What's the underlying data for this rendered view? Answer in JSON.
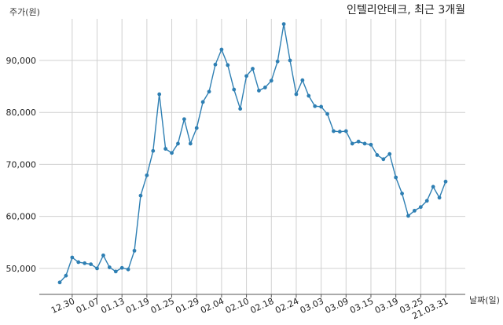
{
  "chart_data": {
    "type": "line",
    "title": "인텔리안테크, 최근 3개월",
    "ylabel": "주가(원)",
    "xlabel": "날짜(일)",
    "ylim": [
      45000,
      98000
    ],
    "yticks": [
      50000,
      60000,
      70000,
      80000,
      90000
    ],
    "ytick_labels": [
      "50,000",
      "60,000",
      "70,000",
      "80,000",
      "90,000"
    ],
    "xtick_labels": [
      "12.30",
      "01.07",
      "01.13",
      "01.19",
      "01.25",
      "01.29",
      "02.04",
      "02.10",
      "02.18",
      "02.24",
      "03.03",
      "03.09",
      "03.15",
      "03.19",
      "03.25",
      "21.03.31"
    ],
    "xtick_indices": [
      2,
      6,
      10,
      14,
      18,
      22,
      26,
      30,
      34,
      38,
      42,
      46,
      50,
      54,
      58,
      62
    ],
    "grid": true,
    "line_color": "#2e7fb3",
    "series": [
      {
        "values": [
          47300,
          48600,
          52100,
          51200,
          51000,
          50800,
          50000,
          52500,
          50200,
          49400,
          50100,
          49800,
          53400,
          64000,
          67900,
          72600,
          83500,
          73000,
          72200,
          74000,
          78700,
          74000,
          77000,
          82000,
          84000,
          89200,
          92100,
          89100,
          84400,
          80700,
          87000,
          88400,
          84200,
          84800,
          86100,
          89800,
          97000,
          90000,
          83500,
          86200,
          83200,
          81200,
          81100,
          79700,
          76400,
          76300,
          76400,
          74000,
          74400,
          74000,
          73800,
          71800,
          71000,
          72000,
          67500,
          64400,
          60100,
          61100,
          61800,
          63000,
          65700,
          63600,
          66700
        ]
      }
    ]
  }
}
